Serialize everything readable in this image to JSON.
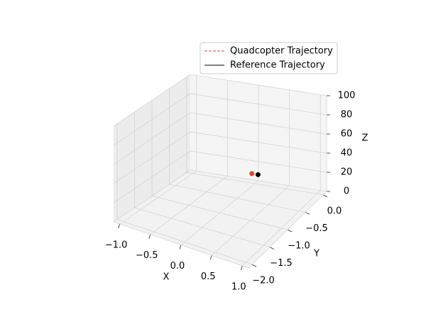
{
  "chart_data": {
    "type": "line3d",
    "xlabel": "X",
    "ylabel": "Y",
    "zlabel": "Z",
    "xlim": [
      -1.1,
      1.1
    ],
    "ylim": [
      -2.1,
      0.1
    ],
    "zlim": [
      0,
      100
    ],
    "xticks": [
      {
        "value": -1,
        "label": "−1.0"
      },
      {
        "value": -0.5,
        "label": "−0.5"
      },
      {
        "value": 0,
        "label": "0.0"
      },
      0.5,
      {
        "value": 1,
        "label": "1.0"
      }
    ],
    "yticks": [
      {
        "value": 0,
        "label": "0.0"
      },
      {
        "value": -0.5,
        "label": "−0.5"
      },
      {
        "value": -1,
        "label": "−1.0"
      },
      {
        "value": -1.5,
        "label": "−1.5"
      },
      {
        "value": -2,
        "label": "−2.0"
      }
    ],
    "zticks": [
      0,
      20,
      40,
      60,
      80,
      100
    ],
    "grid": true,
    "legend": "upper right",
    "series": [
      {
        "name": "Quadcopter Trajectory",
        "color": "#e8432a",
        "linestyle": "dashed",
        "x": [
          -0.05
        ],
        "y": [
          0
        ],
        "z": [
          10
        ]
      },
      {
        "name": "Reference Trajectory",
        "color": "#000000",
        "linestyle": "solid",
        "x": [
          0.05
        ],
        "y": [
          0
        ],
        "z": [
          10
        ]
      }
    ]
  }
}
